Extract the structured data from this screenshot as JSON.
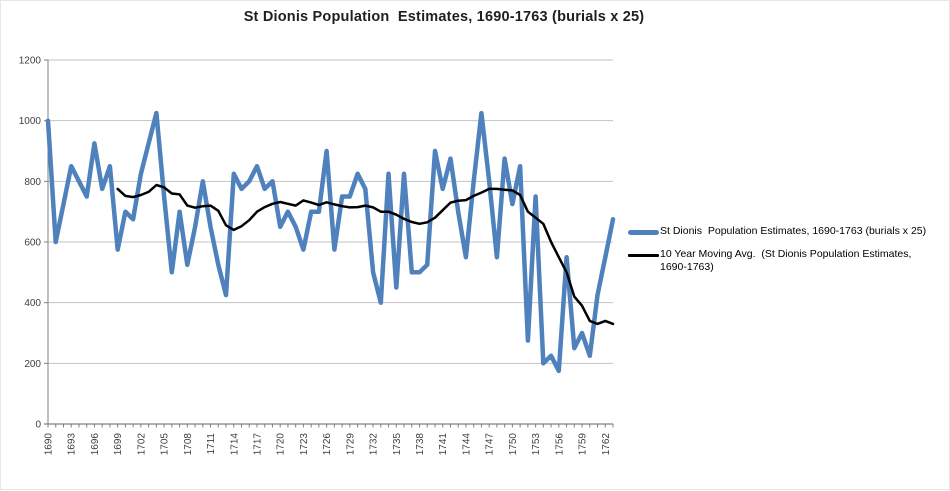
{
  "chart_data": {
    "type": "line",
    "title": "St Dionis Population  Estimates, 1690-1763 (burials x 25)",
    "xlabel": "",
    "ylabel": "",
    "ylim": [
      0,
      1200
    ],
    "y_ticks": [
      0,
      200,
      400,
      600,
      800,
      1000,
      1200
    ],
    "y_tick_labels": [
      "0",
      "200",
      "400",
      "600",
      "800",
      "1000",
      "1200"
    ],
    "x_start": 1690,
    "x_end": 1763,
    "x_tick_step_labels": 3,
    "x_tick_labels": [
      "1690",
      "1693",
      "1696",
      "1699",
      "1702",
      "1705",
      "1708",
      "1711",
      "1714",
      "1717",
      "1720",
      "1723",
      "1726",
      "1729",
      "1732",
      "1735",
      "1738",
      "1741",
      "1744",
      "1747",
      "1750",
      "1753",
      "1756",
      "1759",
      "1762"
    ],
    "grid": "horizontal",
    "legend_position": "right",
    "colors": {
      "series_blue": "#4F81BD",
      "series_black": "#000000",
      "gridline": "#c3c3c3",
      "axis": "#808080",
      "tick_text": "#3f3f3f"
    },
    "series": [
      {
        "name": "St Dionis  Population Estimates, 1690-1763 (burials x 25)",
        "color": "#4F81BD",
        "stroke_width": 4.5,
        "start_year": 1690,
        "values": [
          1000,
          600,
          725,
          850,
          800,
          750,
          925,
          775,
          850,
          575,
          700,
          675,
          825,
          925,
          1025,
          750,
          500,
          700,
          525,
          650,
          800,
          650,
          525,
          425,
          825,
          775,
          800,
          850,
          775,
          800,
          650,
          700,
          650,
          575,
          700,
          700,
          900,
          575,
          750,
          750,
          825,
          775,
          500,
          400,
          825,
          450,
          825,
          500,
          500,
          525,
          900,
          775,
          875,
          700,
          550,
          800,
          1025,
          800,
          550,
          875,
          725,
          850,
          275,
          750,
          200,
          225,
          175,
          550,
          250,
          300,
          225,
          425,
          550,
          675
        ]
      },
      {
        "name": "10 Year Moving Avg.  (St Dionis Population Estimates, 1690-1763)",
        "color": "#000000",
        "stroke_width": 2.5,
        "start_year": 1699,
        "values": [
          775,
          752,
          748,
          755,
          765,
          788,
          780,
          760,
          757,
          720,
          713,
          718,
          720,
          703,
          655,
          640,
          652,
          672,
          700,
          715,
          726,
          732,
          726,
          720,
          737,
          730,
          722,
          731,
          724,
          718,
          714,
          715,
          720,
          714,
          700,
          700,
          690,
          676,
          666,
          660,
          665,
          680,
          705,
          730,
          736,
          738,
          752,
          763,
          775,
          775,
          772,
          770,
          755,
          700,
          680,
          660,
          600,
          550,
          500,
          420,
          390,
          340,
          330,
          340,
          330
        ]
      }
    ]
  }
}
